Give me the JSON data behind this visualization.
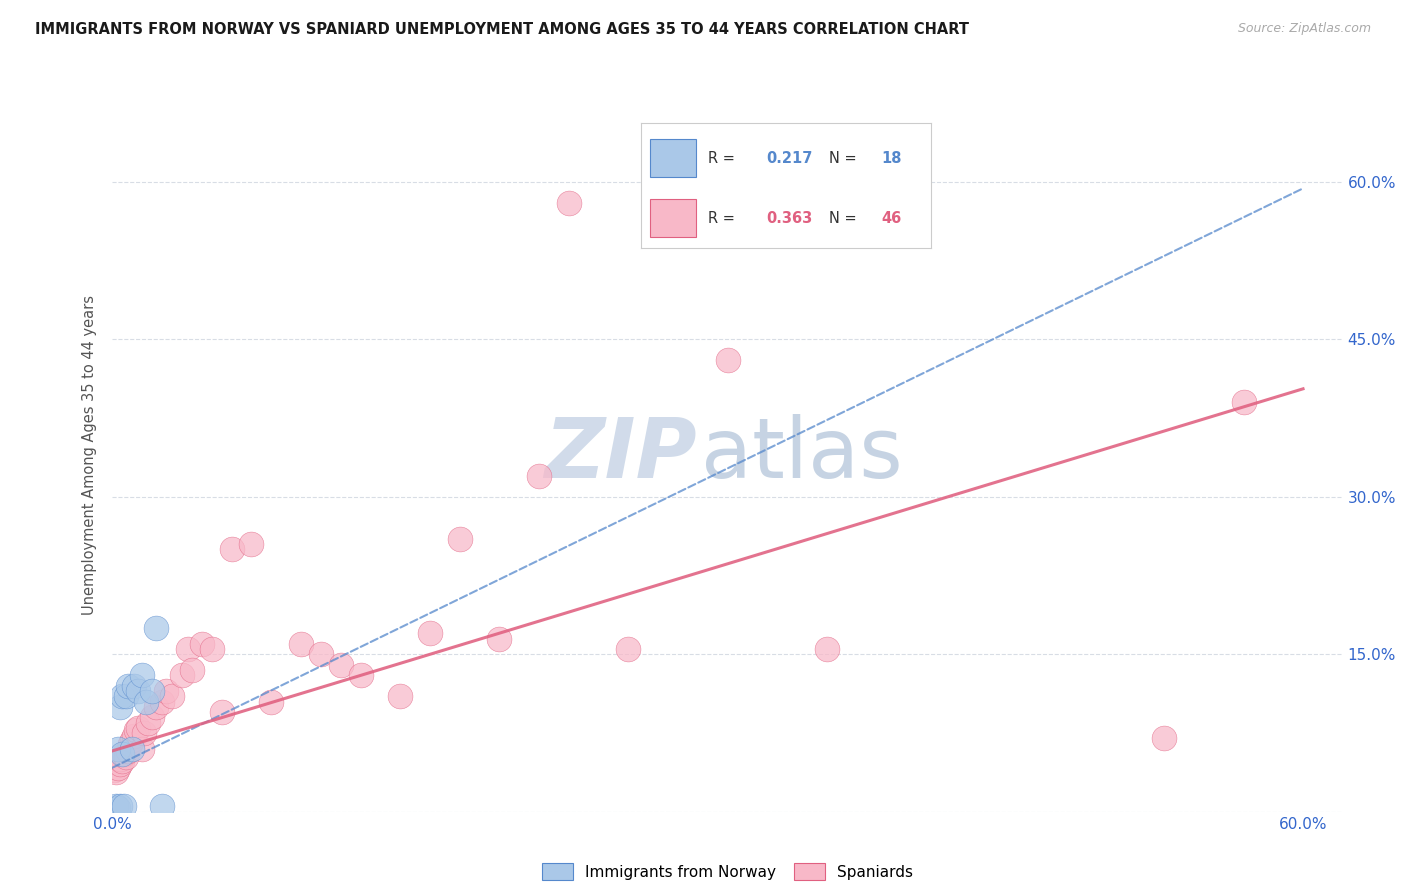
{
  "title": "IMMIGRANTS FROM NORWAY VS SPANIARD UNEMPLOYMENT AMONG AGES 35 TO 44 YEARS CORRELATION CHART",
  "source": "Source: ZipAtlas.com",
  "ylabel": "Unemployment Among Ages 35 to 44 years",
  "xlim": [
    0.0,
    0.62
  ],
  "ylim": [
    0.0,
    0.68
  ],
  "xticks": [
    0.0,
    0.1,
    0.2,
    0.3,
    0.4,
    0.5,
    0.6
  ],
  "yticks": [
    0.0,
    0.15,
    0.3,
    0.45,
    0.6
  ],
  "norway_R": 0.217,
  "norway_N": 18,
  "spain_R": 0.363,
  "spain_N": 46,
  "norway_face_color": "#aac8e8",
  "spain_face_color": "#f8b8c8",
  "norway_edge_color": "#5588cc",
  "spain_edge_color": "#e06080",
  "grid_color": "#d8dde5",
  "watermark_zip_color": "#ccd8e8",
  "watermark_atlas_color": "#c0cfe0",
  "norway_x": [
    0.002,
    0.003,
    0.003,
    0.004,
    0.004,
    0.005,
    0.005,
    0.006,
    0.007,
    0.008,
    0.01,
    0.011,
    0.013,
    0.015,
    0.017,
    0.02,
    0.022,
    0.025
  ],
  "norway_y": [
    0.005,
    0.004,
    0.06,
    0.005,
    0.1,
    0.055,
    0.11,
    0.005,
    0.11,
    0.12,
    0.06,
    0.12,
    0.115,
    0.13,
    0.105,
    0.115,
    0.175,
    0.005
  ],
  "spain_x": [
    0.001,
    0.002,
    0.003,
    0.004,
    0.004,
    0.005,
    0.006,
    0.007,
    0.008,
    0.009,
    0.01,
    0.011,
    0.012,
    0.013,
    0.015,
    0.016,
    0.018,
    0.02,
    0.022,
    0.025,
    0.027,
    0.03,
    0.035,
    0.038,
    0.04,
    0.045,
    0.05,
    0.055,
    0.06,
    0.07,
    0.08,
    0.095,
    0.105,
    0.115,
    0.125,
    0.145,
    0.16,
    0.175,
    0.195,
    0.215,
    0.23,
    0.26,
    0.31,
    0.36,
    0.53,
    0.57
  ],
  "spain_y": [
    0.04,
    0.038,
    0.042,
    0.045,
    0.05,
    0.048,
    0.055,
    0.052,
    0.058,
    0.065,
    0.068,
    0.072,
    0.078,
    0.08,
    0.06,
    0.075,
    0.085,
    0.09,
    0.1,
    0.105,
    0.115,
    0.11,
    0.13,
    0.155,
    0.135,
    0.16,
    0.155,
    0.095,
    0.25,
    0.255,
    0.105,
    0.16,
    0.15,
    0.14,
    0.13,
    0.11,
    0.17,
    0.26,
    0.165,
    0.32,
    0.58,
    0.155,
    0.43,
    0.155,
    0.07,
    0.39
  ],
  "norway_trend_intercept": 0.042,
  "norway_trend_slope": 0.92,
  "spain_trend_intercept": 0.058,
  "spain_trend_slope": 0.575
}
